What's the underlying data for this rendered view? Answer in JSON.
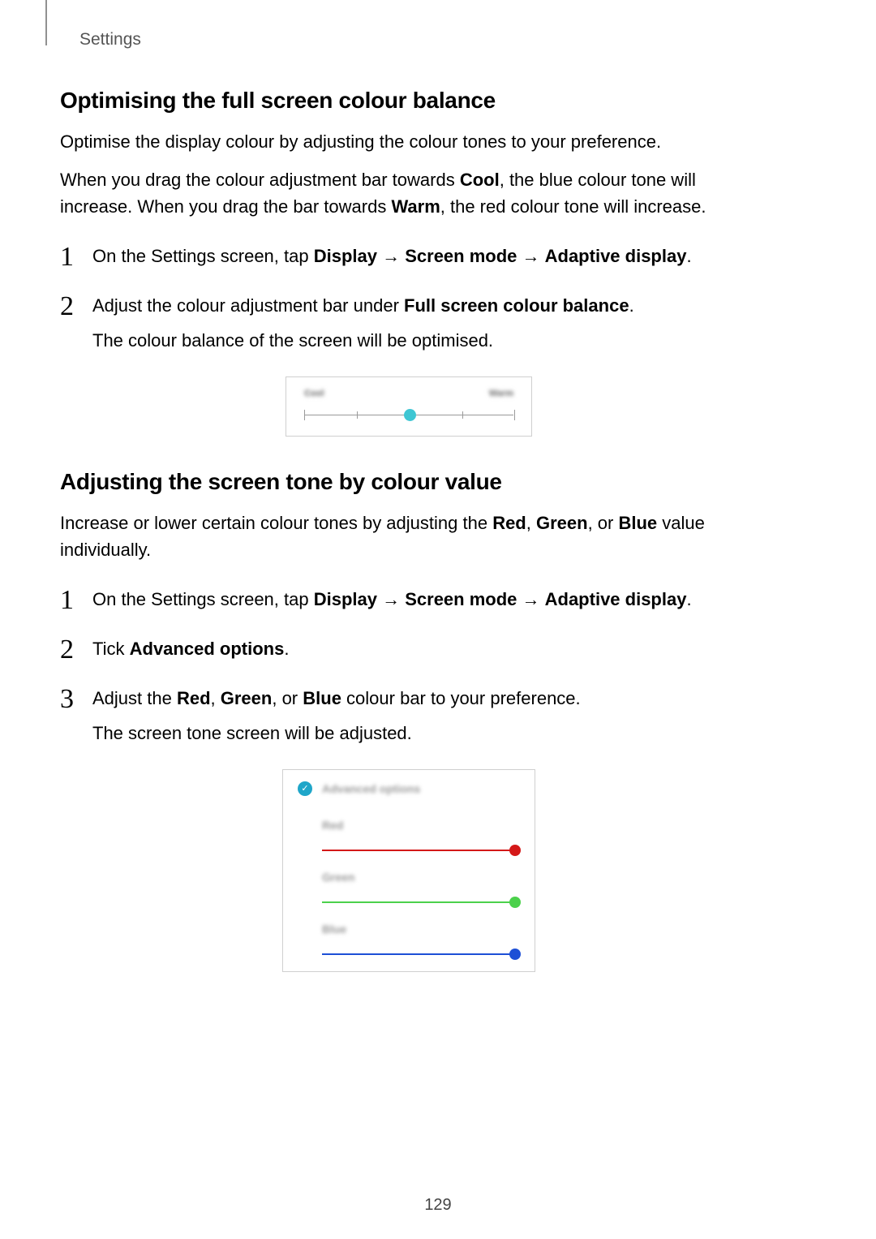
{
  "page": {
    "header": "Settings",
    "number": "129"
  },
  "section1": {
    "heading": "Optimising the full screen colour balance",
    "p1": "Optimise the display colour by adjusting the colour tones to your preference.",
    "p2_pre": "When you drag the colour adjustment bar towards ",
    "p2_b1": "Cool",
    "p2_mid": ", the blue colour tone will increase. When you drag the bar towards ",
    "p2_b2": "Warm",
    "p2_post": ", the red colour tone will increase.",
    "steps": {
      "s1_pre": "On the Settings screen, tap ",
      "s1_b1": "Display",
      "s1_arrow1": " → ",
      "s1_b2": "Screen mode",
      "s1_arrow2": " → ",
      "s1_b3": "Adaptive display",
      "s1_post": ".",
      "s2_pre": "Adjust the colour adjustment bar under ",
      "s2_b1": "Full screen colour balance",
      "s2_post": ".",
      "s2_sub": "The colour balance of the screen will be optimised."
    }
  },
  "figure1": {
    "left_label": "Cool",
    "right_label": "Warm",
    "thumb_color": "#3fc6d3",
    "track_color": "#9a9a9a",
    "thumb_position_pct": 50,
    "tick_positions_pct": [
      0,
      25,
      50,
      75,
      100
    ]
  },
  "section2": {
    "heading": "Adjusting the screen tone by colour value",
    "p1_pre": "Increase or lower certain colour tones by adjusting the ",
    "p1_b1": "Red",
    "p1_c1": ", ",
    "p1_b2": "Green",
    "p1_c2": ", or ",
    "p1_b3": "Blue",
    "p1_post": " value individually.",
    "steps": {
      "s1_pre": "On the Settings screen, tap ",
      "s1_b1": "Display",
      "s1_arrow1": " → ",
      "s1_b2": "Screen mode",
      "s1_arrow2": " → ",
      "s1_b3": "Adaptive display",
      "s1_post": ".",
      "s2_pre": "Tick ",
      "s2_b1": "Advanced options",
      "s2_post": ".",
      "s3_pre": "Adjust the ",
      "s3_b1": "Red",
      "s3_c1": ", ",
      "s3_b2": "Green",
      "s3_c2": ", or ",
      "s3_b3": "Blue",
      "s3_post": " colour bar to your preference.",
      "s3_sub": "The screen tone screen will be adjusted."
    }
  },
  "figure2": {
    "header_text": "Advanced options",
    "check_color": "#1fa6c9",
    "sliders": [
      {
        "label": "Red",
        "color": "#d41818",
        "thumb_color": "#d41818",
        "value_pct": 100
      },
      {
        "label": "Green",
        "color": "#4bd14b",
        "thumb_color": "#4bd14b",
        "value_pct": 100
      },
      {
        "label": "Blue",
        "color": "#1d4fd6",
        "thumb_color": "#1d4fd6",
        "value_pct": 100
      }
    ]
  }
}
